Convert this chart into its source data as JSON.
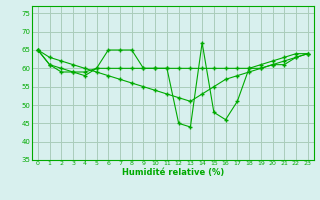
{
  "x": [
    0,
    1,
    2,
    3,
    4,
    5,
    6,
    7,
    8,
    9,
    10,
    11,
    12,
    13,
    14,
    15,
    16,
    17,
    18,
    19,
    20,
    21,
    22,
    23
  ],
  "line1": [
    65,
    61,
    59,
    59,
    58,
    60,
    65,
    65,
    65,
    60,
    60,
    60,
    45,
    44,
    67,
    48,
    46,
    51,
    60,
    61,
    62,
    63,
    64,
    64
  ],
  "line2": [
    65,
    61,
    60,
    59,
    59,
    60,
    60,
    60,
    60,
    60,
    60,
    60,
    60,
    60,
    60,
    60,
    60,
    60,
    60,
    60,
    61,
    61,
    63,
    64
  ],
  "line3": [
    65,
    63,
    62,
    61,
    60,
    59,
    58,
    57,
    56,
    55,
    54,
    53,
    52,
    51,
    53,
    55,
    57,
    58,
    59,
    60,
    61,
    62,
    63,
    64
  ],
  "line_color": "#00aa00",
  "bg_color": "#d8f0ee",
  "grid_color": "#aaccbb",
  "xlabel": "Humidité relative (%)",
  "ylim": [
    35,
    77
  ],
  "yticks": [
    35,
    40,
    45,
    50,
    55,
    60,
    65,
    70,
    75
  ],
  "xticks": [
    0,
    1,
    2,
    3,
    4,
    5,
    6,
    7,
    8,
    9,
    10,
    11,
    12,
    13,
    14,
    15,
    16,
    17,
    18,
    19,
    20,
    21,
    22,
    23
  ]
}
